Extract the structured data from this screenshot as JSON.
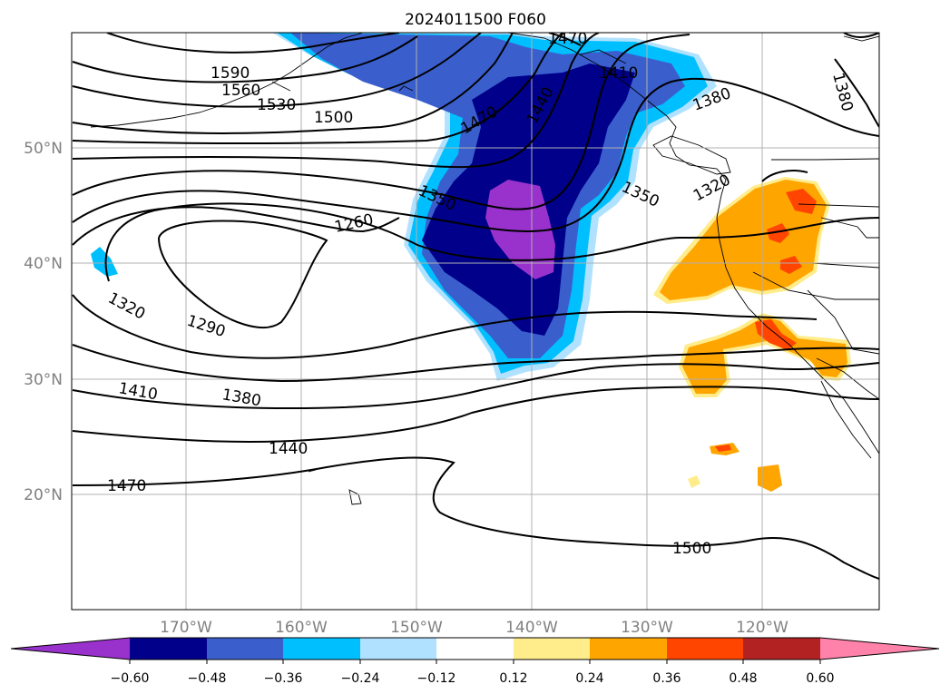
{
  "title": "2024011500 F060",
  "lat_labels": [
    "50°N",
    "40°N",
    "30°N",
    "20°N"
  ],
  "lon_labels": [
    "170°W",
    "160°W",
    "150°W",
    "140°W",
    "130°W",
    "120°W"
  ],
  "contour_labels": [
    "1590",
    "1560",
    "1530",
    "1500",
    "1470",
    "1440",
    "1410",
    "1380",
    "1350",
    "1320",
    "1260",
    "1320",
    "1290",
    "1410",
    "1380",
    "1440",
    "1470",
    "1500",
    "1380",
    "1350",
    "1320",
    "1410",
    "1470"
  ],
  "colorbar": {
    "ticks": [
      "−0.60",
      "−0.48",
      "−0.36",
      "−0.24",
      "−0.12",
      "0.12",
      "0.24",
      "0.36",
      "0.48",
      "0.60"
    ],
    "colors": [
      "#9932cc",
      "#00008b",
      "#3a5fcd",
      "#00bfff",
      "#b0e2ff",
      "#ffffff",
      "#ffec8b",
      "#ffa500",
      "#ff4500",
      "#b22222",
      "#ff82ab"
    ]
  }
}
